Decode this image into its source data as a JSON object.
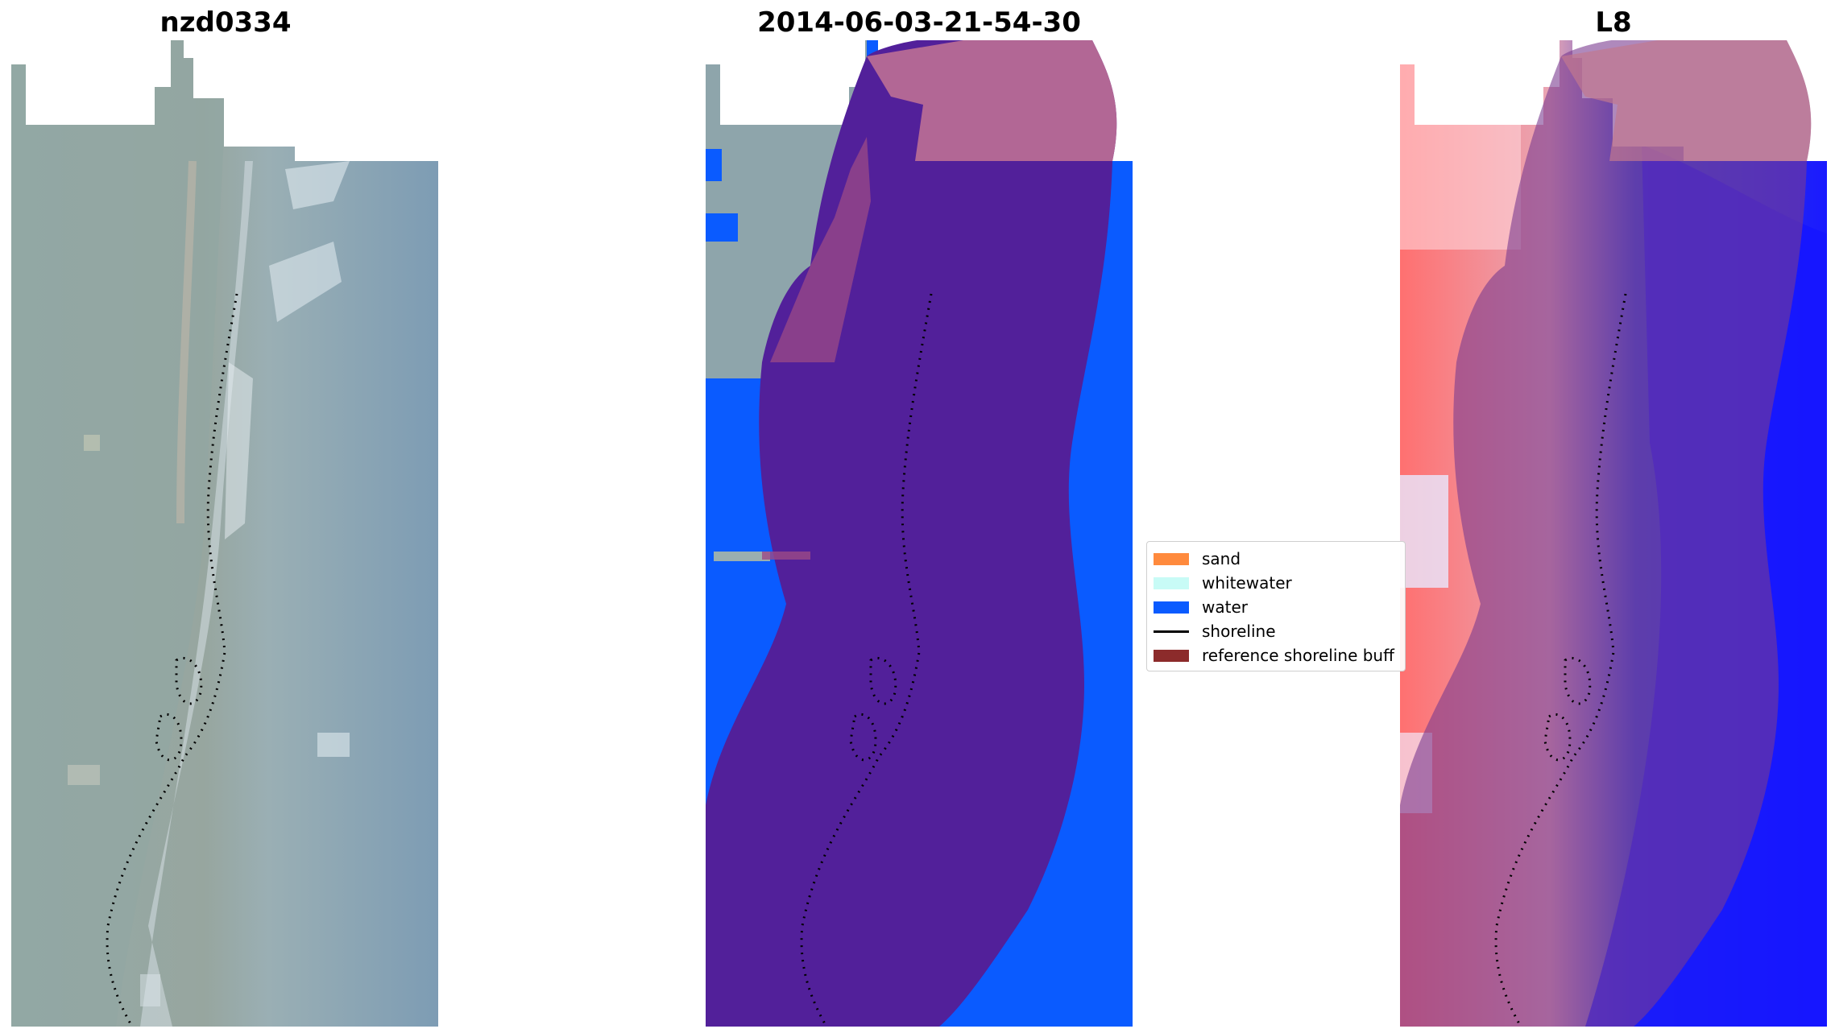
{
  "panels": [
    {
      "title": "nzd0334",
      "kind": "rgb-image"
    },
    {
      "title": "2014-06-03-21-54-30",
      "kind": "classified-image"
    },
    {
      "title": "L8",
      "kind": "index-image"
    }
  ],
  "legend": {
    "items": [
      {
        "label": "sand",
        "color": "#ff8a3d",
        "kind": "patch"
      },
      {
        "label": "whitewater",
        "color": "#c8fbf6",
        "kind": "patch"
      },
      {
        "label": "water",
        "color": "#0a5bff",
        "kind": "patch"
      },
      {
        "label": "shoreline",
        "color": "#000000",
        "kind": "line"
      },
      {
        "label": "reference shoreline buff",
        "color": "#8c2b2b",
        "kind": "patch"
      }
    ]
  },
  "colors": {
    "buffer_overlay": "#7a3a8f",
    "buffer_purple": "#52209a",
    "water_blue": "#0a5bff",
    "land_rgb": "#8ea5ad",
    "sea_rgb": "#7f9eb4"
  }
}
